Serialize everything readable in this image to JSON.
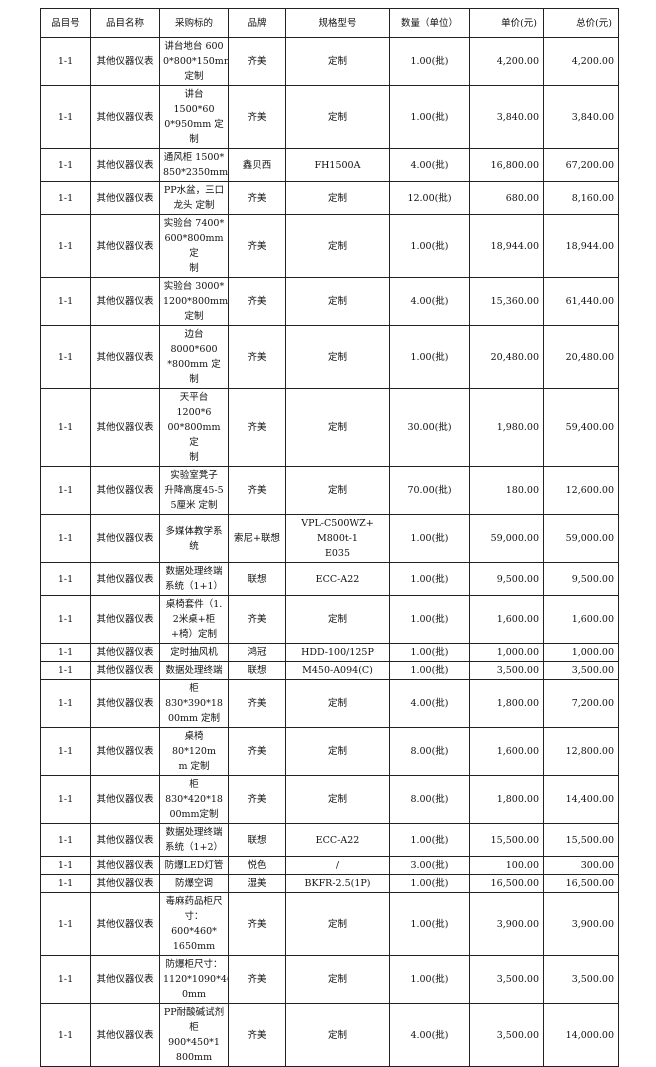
{
  "headers": [
    "品目号",
    "品目名称",
    "采购标的",
    "品牌",
    "规格型号",
    "数量（单位）",
    "单价(元)",
    "总价(元)"
  ],
  "rows": [
    {
      "no": "1-1",
      "name": "其他仪器仪表",
      "item": "讲台地台 600\n0*800*150mm\n定制",
      "brand": "齐美",
      "model": "定制",
      "qty": "1.00(批)",
      "unit": "4,200.00",
      "total": "4,200.00"
    },
    {
      "no": "1-1",
      "name": "其他仪器仪表",
      "item": "讲台 1500*60\n0*950mm 定制",
      "brand": "齐美",
      "model": "定制",
      "qty": "1.00(批)",
      "unit": "3,840.00",
      "total": "3,840.00"
    },
    {
      "no": "1-1",
      "name": "其他仪器仪表",
      "item": "通风柜 1500*\n850*2350mm",
      "brand": "鑫贝西",
      "model": "FH1500A",
      "qty": "4.00(批)",
      "unit": "16,800.00",
      "total": "67,200.00"
    },
    {
      "no": "1-1",
      "name": "其他仪器仪表",
      "item": "PP水盆，三口\n龙头 定制",
      "brand": "齐美",
      "model": "定制",
      "qty": "12.00(批)",
      "unit": "680.00",
      "total": "8,160.00"
    },
    {
      "no": "1-1",
      "name": "其他仪器仪表",
      "item": "实验台 7400*\n600*800mm 定\n制",
      "brand": "齐美",
      "model": "定制",
      "qty": "1.00(批)",
      "unit": "18,944.00",
      "total": "18,944.00"
    },
    {
      "no": "1-1",
      "name": "其他仪器仪表",
      "item": "实验台 3000*\n1200*800mm\n定制",
      "brand": "齐美",
      "model": "定制",
      "qty": "4.00(批)",
      "unit": "15,360.00",
      "total": "61,440.00"
    },
    {
      "no": "1-1",
      "name": "其他仪器仪表",
      "item": "边台8000*600\n*800mm 定制",
      "brand": "齐美",
      "model": "定制",
      "qty": "1.00(批)",
      "unit": "20,480.00",
      "total": "20,480.00"
    },
    {
      "no": "1-1",
      "name": "其他仪器仪表",
      "item": "天平台1200*6\n00*800mm 定\n制",
      "brand": "齐美",
      "model": "定制",
      "qty": "30.00(批)",
      "unit": "1,980.00",
      "total": "59,400.00"
    },
    {
      "no": "1-1",
      "name": "其他仪器仪表",
      "item": "实验室凳子\n升降高度45-5\n5厘米 定制",
      "brand": "齐美",
      "model": "定制",
      "qty": "70.00(批)",
      "unit": "180.00",
      "total": "12,600.00"
    },
    {
      "no": "1-1",
      "name": "其他仪器仪表",
      "item": "多媒体教学系\n统",
      "brand": "索尼+联想",
      "model": "VPL-C500WZ+ M800t-1\nE035",
      "qty": "1.00(批)",
      "unit": "59,000.00",
      "total": "59,000.00"
    },
    {
      "no": "1-1",
      "name": "其他仪器仪表",
      "item": "数据处理终端\n系统（1+1）",
      "brand": "联想",
      "model": "ECC-A22",
      "qty": "1.00(批)",
      "unit": "9,500.00",
      "total": "9,500.00"
    },
    {
      "no": "1-1",
      "name": "其他仪器仪表",
      "item": "桌椅套件（1.\n2米桌+柜\n+椅）定制",
      "brand": "齐美",
      "model": "定制",
      "qty": "1.00(批)",
      "unit": "1,600.00",
      "total": "1,600.00"
    },
    {
      "no": "1-1",
      "name": "其他仪器仪表",
      "item": "定时抽风机",
      "brand": "鸿冠",
      "model": "HDD-100/125P",
      "qty": "1.00(批)",
      "unit": "1,000.00",
      "total": "1,000.00"
    },
    {
      "no": "1-1",
      "name": "其他仪器仪表",
      "item": "数据处理终端",
      "brand": "联想",
      "model": "M450-A094(C)",
      "qty": "1.00(批)",
      "unit": "3,500.00",
      "total": "3,500.00"
    },
    {
      "no": "1-1",
      "name": "其他仪器仪表",
      "item": "柜830*390*18\n00mm 定制",
      "brand": "齐美",
      "model": "定制",
      "qty": "4.00(批)",
      "unit": "1,800.00",
      "total": "7,200.00"
    },
    {
      "no": "1-1",
      "name": "其他仪器仪表",
      "item": "桌椅 80*120m\nm 定制",
      "brand": "齐美",
      "model": "定制",
      "qty": "8.00(批)",
      "unit": "1,600.00",
      "total": "12,800.00"
    },
    {
      "no": "1-1",
      "name": "其他仪器仪表",
      "item": "柜830*420*18\n00mm定制",
      "brand": "齐美",
      "model": "定制",
      "qty": "8.00(批)",
      "unit": "1,800.00",
      "total": "14,400.00"
    },
    {
      "no": "1-1",
      "name": "其他仪器仪表",
      "item": "数据处理终端\n系统（1+2）",
      "brand": "联想",
      "model": "ECC-A22",
      "qty": "1.00(批)",
      "unit": "15,500.00",
      "total": "15,500.00"
    },
    {
      "no": "1-1",
      "name": "其他仪器仪表",
      "item": "防爆LED灯管",
      "brand": "悦色",
      "model": "/",
      "qty": "3.00(批)",
      "unit": "100.00",
      "total": "300.00"
    },
    {
      "no": "1-1",
      "name": "其他仪器仪表",
      "item": "防爆空调",
      "brand": "湿美",
      "model": "BKFR-2.5(1P)",
      "qty": "1.00(批)",
      "unit": "16,500.00",
      "total": "16,500.00"
    },
    {
      "no": "1-1",
      "name": "其他仪器仪表",
      "item": "毒麻药品柜尺\n寸：600*460*\n1650mm",
      "brand": "齐美",
      "model": "定制",
      "qty": "1.00(批)",
      "unit": "3,900.00",
      "total": "3,900.00"
    },
    {
      "no": "1-1",
      "name": "其他仪器仪表",
      "item": "防爆柜尺寸：\n1120*1090*46\n0mm",
      "brand": "齐美",
      "model": "定制",
      "qty": "1.00(批)",
      "unit": "3,500.00",
      "total": "3,500.00"
    },
    {
      "no": "1-1",
      "name": "其他仪器仪表",
      "item": "PP耐酸碱试剂\n柜 900*450*1\n800mm",
      "brand": "齐美",
      "model": "定制",
      "qty": "4.00(批)",
      "unit": "3,500.00",
      "total": "14,000.00"
    }
  ]
}
